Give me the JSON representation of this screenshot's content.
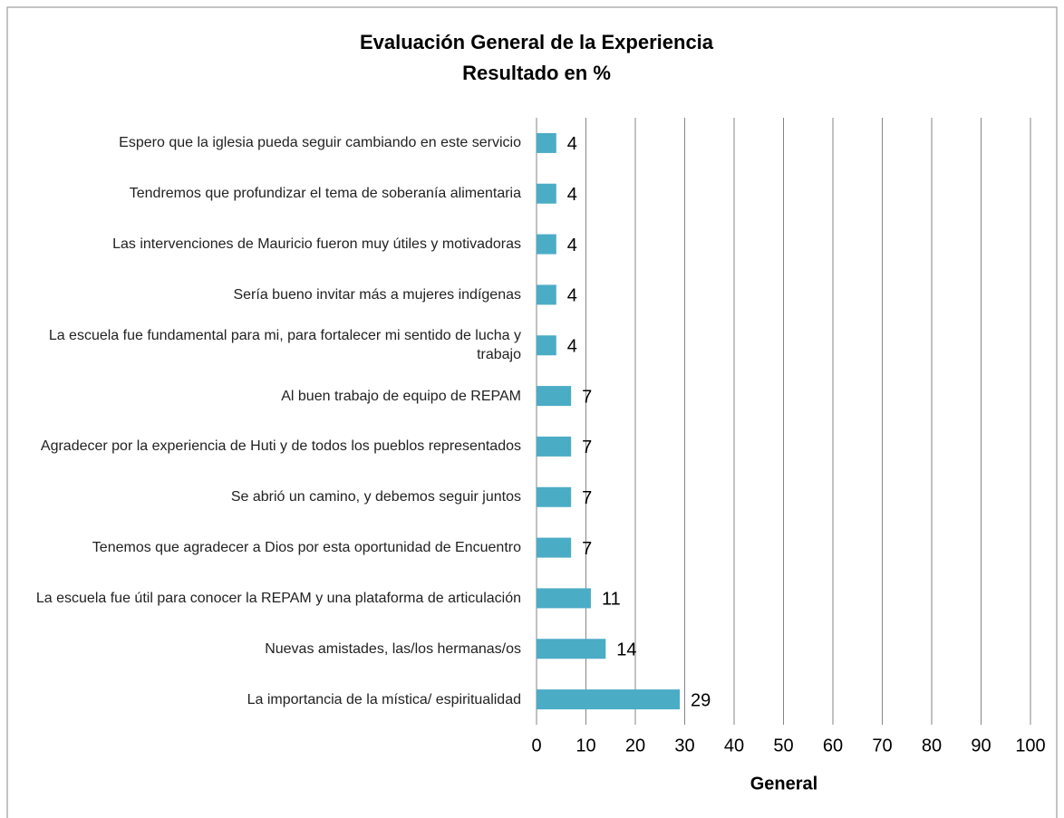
{
  "chart_data": {
    "type": "barh",
    "title": "Evaluación General de la Experiencia",
    "subtitle": "Resultado en %",
    "x_label": "General",
    "categories": [
      "Espero que la iglesia pueda seguir cambiando en este servicio",
      "Tendremos que profundizar el tema de soberanía alimentaria",
      "Las intervenciones de Mauricio fueron muy útiles y motivadoras",
      "Sería bueno invitar más a mujeres indígenas",
      "La escuela fue fundamental para mi, para fortalecer mi sentido de lucha y trabajo",
      "Al buen trabajo de equipo de REPAM",
      "Agradecer por la experiencia de Huti y de todos los pueblos representados",
      "Se abrió un camino, y debemos seguir juntos",
      "Tenemos que agradecer a Dios por esta oportunidad de Encuentro",
      "La escuela fue útil para conocer la REPAM y una plataforma de articulación",
      "Nuevas amistades, las/los hermanas/os",
      "La importancia de la mística/ espiritualidad"
    ],
    "values": [
      4,
      4,
      4,
      4,
      4,
      7,
      7,
      7,
      7,
      11,
      14,
      29
    ],
    "color": "#4bacc6",
    "xlim": [
      0,
      100
    ],
    "xticks": [
      0,
      10,
      20,
      30,
      40,
      50,
      60,
      70,
      80,
      90,
      100
    ],
    "grid": true
  }
}
